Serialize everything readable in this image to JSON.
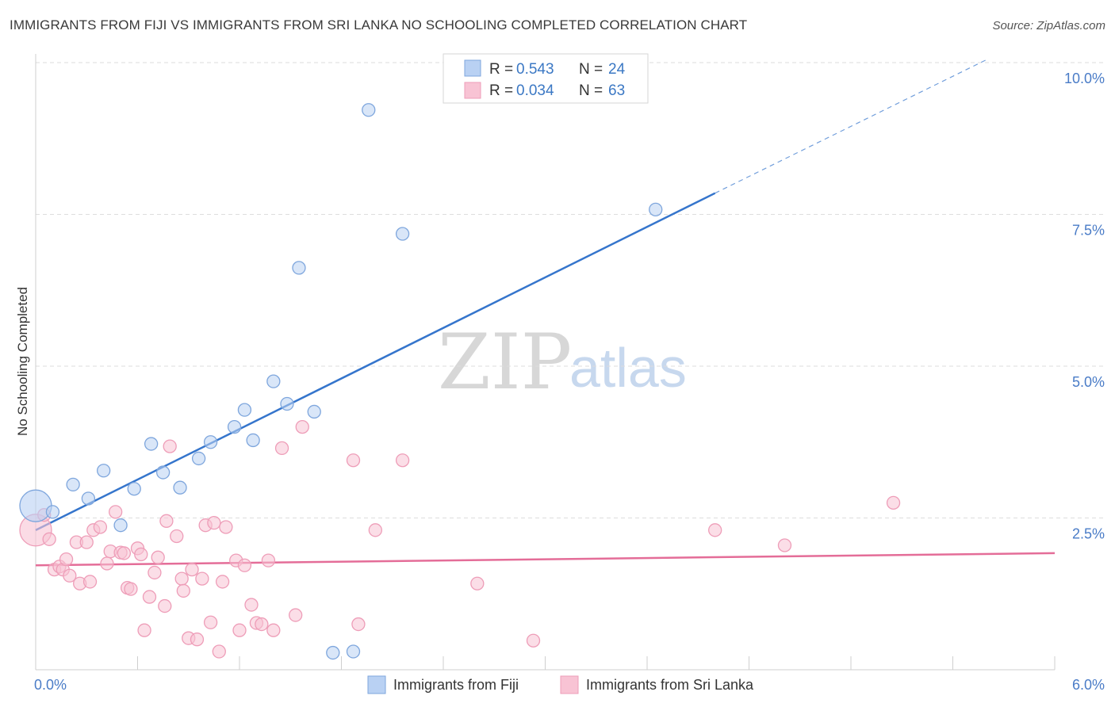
{
  "title": "IMMIGRANTS FROM FIJI VS IMMIGRANTS FROM SRI LANKA NO SCHOOLING COMPLETED CORRELATION CHART",
  "source": "Source: ZipAtlas.com",
  "watermark": {
    "zip": "ZIP",
    "atlas": "atlas"
  },
  "legend": {
    "fiji": {
      "r_label": "R = ",
      "r_value": "0.543",
      "n_label": "N = ",
      "n_value": "24"
    },
    "srilanka": {
      "r_label": "R = ",
      "r_value": "0.034",
      "n_label": "N = ",
      "n_value": "63"
    }
  },
  "bottom_legend": {
    "fiji": "Immigrants from Fiji",
    "srilanka": "Immigrants from Sri Lanka"
  },
  "colors": {
    "fiji_fill": "#b9d1f3",
    "fiji_stroke": "#7ea6dd",
    "fiji_line": "#3575cc",
    "srilanka_fill": "#f8c3d4",
    "srilanka_stroke": "#ee9db8",
    "srilanka_line": "#e46d98",
    "tick": "#4a7cc7",
    "grid": "#dddddd"
  },
  "chart_data": {
    "type": "scatter",
    "title": "IMMIGRANTS FROM FIJI VS IMMIGRANTS FROM SRI LANKA NO SCHOOLING COMPLETED CORRELATION CHART",
    "xlabel": "",
    "ylabel": "No Schooling Completed",
    "xlim": [
      0,
      6.0
    ],
    "ylim": [
      0,
      10.0
    ],
    "x_tick_labels": [
      "0.0%",
      "6.0%"
    ],
    "y_ticks": [
      2.5,
      5.0,
      7.5,
      10.0
    ],
    "y_tick_labels": [
      "2.5%",
      "5.0%",
      "7.5%",
      "10.0%"
    ],
    "grid": true,
    "legend_position": "top-center",
    "series": [
      {
        "name": "Immigrants from Fiji",
        "points": [
          [
            0.0,
            2.7,
            1
          ],
          [
            0.1,
            2.6,
            0
          ],
          [
            0.22,
            3.05,
            0
          ],
          [
            0.31,
            2.82,
            0
          ],
          [
            0.4,
            3.28,
            0
          ],
          [
            0.5,
            2.38,
            0
          ],
          [
            0.58,
            2.98,
            0
          ],
          [
            0.68,
            3.72,
            0
          ],
          [
            0.75,
            3.25,
            0
          ],
          [
            0.85,
            3.0,
            0
          ],
          [
            0.96,
            3.48,
            0
          ],
          [
            1.03,
            3.75,
            0
          ],
          [
            1.17,
            4.0,
            0
          ],
          [
            1.23,
            4.28,
            0
          ],
          [
            1.28,
            3.78,
            0
          ],
          [
            1.4,
            4.75,
            0
          ],
          [
            1.48,
            4.38,
            0
          ],
          [
            1.55,
            6.62,
            0
          ],
          [
            1.64,
            4.25,
            0
          ],
          [
            1.75,
            0.28,
            0
          ],
          [
            1.87,
            0.3,
            0
          ],
          [
            1.96,
            9.22,
            0
          ],
          [
            2.16,
            7.18,
            0
          ],
          [
            3.65,
            7.58,
            0
          ]
        ],
        "trend": {
          "x0": 0.0,
          "y0": 2.3,
          "x1": 4.0,
          "y1": 7.85,
          "dash_x1": 5.6,
          "dash_y1": 10.05
        }
      },
      {
        "name": "Immigrants from Sri Lanka",
        "points": [
          [
            0.0,
            2.3,
            1
          ],
          [
            0.05,
            2.55,
            0
          ],
          [
            0.08,
            2.15,
            0
          ],
          [
            0.11,
            1.65,
            0
          ],
          [
            0.14,
            1.7,
            0
          ],
          [
            0.16,
            1.65,
            0
          ],
          [
            0.18,
            1.82,
            0
          ],
          [
            0.2,
            1.55,
            0
          ],
          [
            0.24,
            2.1,
            0
          ],
          [
            0.26,
            1.42,
            0
          ],
          [
            0.3,
            2.1,
            0
          ],
          [
            0.32,
            1.45,
            0
          ],
          [
            0.34,
            2.3,
            0
          ],
          [
            0.38,
            2.35,
            0
          ],
          [
            0.42,
            1.75,
            0
          ],
          [
            0.44,
            1.95,
            0
          ],
          [
            0.47,
            2.6,
            0
          ],
          [
            0.5,
            1.93,
            0
          ],
          [
            0.52,
            1.92,
            0
          ],
          [
            0.54,
            1.35,
            0
          ],
          [
            0.56,
            1.33,
            0
          ],
          [
            0.6,
            2.0,
            0
          ],
          [
            0.62,
            1.9,
            0
          ],
          [
            0.64,
            0.65,
            0
          ],
          [
            0.67,
            1.2,
            0
          ],
          [
            0.7,
            1.6,
            0
          ],
          [
            0.72,
            1.85,
            0
          ],
          [
            0.76,
            1.05,
            0
          ],
          [
            0.77,
            2.45,
            0
          ],
          [
            0.79,
            3.68,
            0
          ],
          [
            0.83,
            2.2,
            0
          ],
          [
            0.86,
            1.5,
            0
          ],
          [
            0.87,
            1.3,
            0
          ],
          [
            0.9,
            0.52,
            0
          ],
          [
            0.92,
            1.65,
            0
          ],
          [
            0.95,
            0.5,
            0
          ],
          [
            0.98,
            1.5,
            0
          ],
          [
            1.0,
            2.38,
            0
          ],
          [
            1.03,
            0.78,
            0
          ],
          [
            1.05,
            2.42,
            0
          ],
          [
            1.08,
            0.3,
            0
          ],
          [
            1.1,
            1.45,
            0
          ],
          [
            1.12,
            2.35,
            0
          ],
          [
            1.18,
            1.8,
            0
          ],
          [
            1.2,
            0.65,
            0
          ],
          [
            1.23,
            1.72,
            0
          ],
          [
            1.27,
            1.07,
            0
          ],
          [
            1.3,
            0.77,
            0
          ],
          [
            1.33,
            0.75,
            0
          ],
          [
            1.37,
            1.8,
            0
          ],
          [
            1.4,
            0.65,
            0
          ],
          [
            1.45,
            3.65,
            0
          ],
          [
            1.53,
            0.9,
            0
          ],
          [
            1.57,
            4.0,
            0
          ],
          [
            1.9,
            0.75,
            0
          ],
          [
            1.87,
            3.45,
            0
          ],
          [
            2.0,
            2.3,
            0
          ],
          [
            2.16,
            3.45,
            0
          ],
          [
            2.6,
            1.42,
            0
          ],
          [
            2.93,
            0.48,
            0
          ],
          [
            4.0,
            2.3,
            0
          ],
          [
            4.41,
            2.05,
            0
          ],
          [
            5.05,
            2.75,
            0
          ]
        ],
        "trend": {
          "x0": 0.0,
          "y0": 1.72,
          "x1": 6.0,
          "y1": 1.92
        }
      }
    ]
  }
}
